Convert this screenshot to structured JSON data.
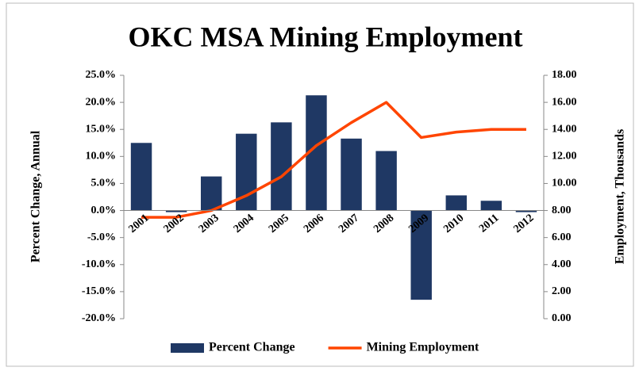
{
  "chart_data": {
    "type": "bar",
    "title": "OKC MSA Mining Employment",
    "categories": [
      "2001",
      "2002",
      "2003",
      "2004",
      "2005",
      "2006",
      "2007",
      "2008",
      "2009",
      "2010",
      "2011",
      "2012"
    ],
    "series": [
      {
        "name": "Percent Change",
        "type": "bar",
        "color": "#1f3864",
        "values": [
          12.5,
          -0.3,
          6.3,
          14.2,
          16.3,
          21.3,
          13.3,
          11.0,
          -16.5,
          2.8,
          1.8,
          -0.3
        ]
      },
      {
        "name": "Mining Employment",
        "type": "line",
        "axis": "y2",
        "color": "#ff4500",
        "values": [
          7.5,
          7.5,
          8.0,
          9.1,
          10.5,
          12.8,
          14.5,
          16.0,
          13.4,
          13.8,
          14.0,
          14.0
        ]
      }
    ],
    "y_label": "Percent Change, Annual",
    "y2_label": "Employment, Thousands",
    "ylim": [
      -20,
      25
    ],
    "yticks": [
      {
        "value": -20,
        "label": "-20.0%"
      },
      {
        "value": -15,
        "label": "-15.0%"
      },
      {
        "value": -10,
        "label": "-10.0%"
      },
      {
        "value": -5,
        "label": "-5.0%"
      },
      {
        "value": 0,
        "label": "0.0%"
      },
      {
        "value": 5,
        "label": "5.0%"
      },
      {
        "value": 10,
        "label": "10.0%"
      },
      {
        "value": 15,
        "label": "15.0%"
      },
      {
        "value": 20,
        "label": "20.0%"
      },
      {
        "value": 25,
        "label": "25.0%"
      }
    ],
    "y2lim": [
      0,
      18
    ],
    "y2ticks": [
      {
        "value": 0,
        "label": "0.00"
      },
      {
        "value": 2,
        "label": "2.00"
      },
      {
        "value": 4,
        "label": "4.00"
      },
      {
        "value": 6,
        "label": "6.00"
      },
      {
        "value": 8,
        "label": "8.00"
      },
      {
        "value": 10,
        "label": "10.00"
      },
      {
        "value": 12,
        "label": "12.00"
      },
      {
        "value": 14,
        "label": "14.00"
      },
      {
        "value": 16,
        "label": "16.00"
      },
      {
        "value": 18,
        "label": "18.00"
      }
    ],
    "grid": false,
    "legend": "bottom"
  }
}
